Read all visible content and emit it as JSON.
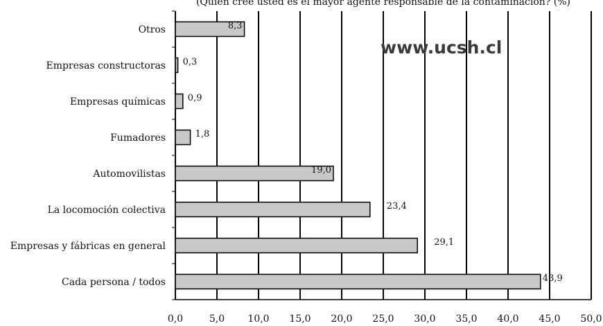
{
  "chart_data": {
    "type": "bar",
    "orientation": "horizontal",
    "title": "(Quién cree usted es el mayor agente responsable de la contaminación? (%)",
    "categories": [
      "Otros",
      "Empresas constructoras",
      "Empresas químicas",
      "Fumadores",
      "Automovilistas",
      "La locomoción colectiva",
      "Empresas y fábricas en general",
      "Cada persona / todos"
    ],
    "values": [
      8.3,
      0.3,
      0.9,
      1.8,
      19.0,
      23.4,
      29.1,
      43.9
    ],
    "data_labels": [
      "8,3",
      "0,3",
      "0,9",
      "1,8",
      "19,0",
      "23,4",
      "29,1",
      "43,9"
    ],
    "xlim": [
      0,
      50
    ],
    "x_ticks": [
      "0,0",
      "5,0",
      "10,0",
      "15,0",
      "20,0",
      "25,0",
      "30,0",
      "35,0",
      "40,0",
      "45,0",
      "50,0"
    ],
    "grid": "vertical",
    "bar_color": "#c8c8c8",
    "watermark": "www.ucsh.cl",
    "xlabel": "",
    "ylabel": ""
  }
}
